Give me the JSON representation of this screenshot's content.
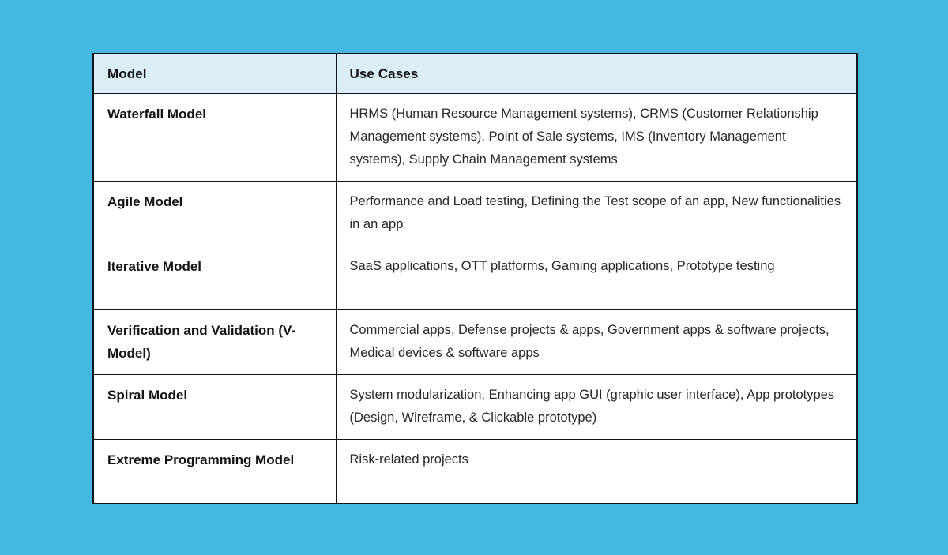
{
  "page": {
    "background_color": "#45b8e2"
  },
  "table": {
    "colors": {
      "header_bg": "#dbedf7",
      "border": "#10151d",
      "cell_bg": "#ffffff",
      "header_text": "#121212",
      "body_text": "#272727"
    },
    "headers": {
      "model": "Model",
      "use_cases": "Use Cases"
    },
    "rows": [
      {
        "model": "Waterfall Model",
        "use_cases": "HRMS (Human Resource Management systems), CRMS (Customer Relationship Management systems), Point of Sale systems, IMS (Inventory Management systems), Supply Chain Management systems"
      },
      {
        "model": "Agile Model",
        "use_cases": "Performance and Load testing, Defining the Test scope of an app, New functionalities in an app"
      },
      {
        "model": "Iterative Model",
        "use_cases": "SaaS applications, OTT platforms, Gaming applications, Prototype testing"
      },
      {
        "model": "Verification and Validation (V-Model)",
        "use_cases": "Commercial apps, Defense projects & apps, Government apps & software projects, Medical devices & software apps"
      },
      {
        "model": "Spiral Model",
        "use_cases": "System modularization, Enhancing app GUI (graphic user interface), App prototypes (Design, Wireframe, & Clickable prototype)"
      },
      {
        "model": "Extreme Programming Model",
        "use_cases": "Risk-related projects"
      }
    ]
  }
}
